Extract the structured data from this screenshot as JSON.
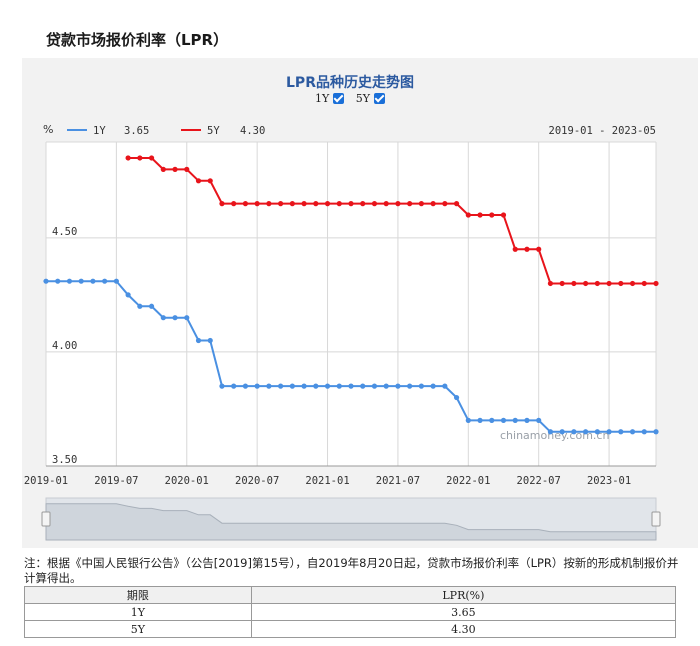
{
  "page": {
    "title": "贷款市场报价利率（LPR）"
  },
  "chart_header": {
    "title": "LPR品种历史走势图",
    "toggle_1y": "1Y",
    "toggle_5y": "5Y"
  },
  "legend": {
    "unit": "%",
    "items": [
      {
        "name": "1Y",
        "value": "3.65",
        "color": "#4a90e2"
      },
      {
        "name": "5Y",
        "value": "4.30",
        "color": "#e8141b"
      }
    ],
    "range": "2019-01 - 2023-05"
  },
  "watermark": "chinamoney.com.cn",
  "chart_data": {
    "type": "line",
    "x": [
      "2019-01",
      "2019-02",
      "2019-03",
      "2019-04",
      "2019-05",
      "2019-06",
      "2019-07",
      "2019-08",
      "2019-09",
      "2019-10",
      "2019-11",
      "2019-12",
      "2020-01",
      "2020-02",
      "2020-03",
      "2020-04",
      "2020-05",
      "2020-06",
      "2020-07",
      "2020-08",
      "2020-09",
      "2020-10",
      "2020-11",
      "2020-12",
      "2021-01",
      "2021-02",
      "2021-03",
      "2021-04",
      "2021-05",
      "2021-06",
      "2021-07",
      "2021-08",
      "2021-09",
      "2021-10",
      "2021-11",
      "2021-12",
      "2022-01",
      "2022-02",
      "2022-03",
      "2022-04",
      "2022-05",
      "2022-06",
      "2022-07",
      "2022-08",
      "2022-09",
      "2022-10",
      "2022-11",
      "2022-12",
      "2023-01",
      "2023-02",
      "2023-03",
      "2023-04",
      "2023-05"
    ],
    "series": [
      {
        "name": "1Y",
        "color": "#4a90e2",
        "values": [
          4.31,
          4.31,
          4.31,
          4.31,
          4.31,
          4.31,
          4.31,
          4.25,
          4.2,
          4.2,
          4.15,
          4.15,
          4.15,
          4.05,
          4.05,
          3.85,
          3.85,
          3.85,
          3.85,
          3.85,
          3.85,
          3.85,
          3.85,
          3.85,
          3.85,
          3.85,
          3.85,
          3.85,
          3.85,
          3.85,
          3.85,
          3.85,
          3.85,
          3.85,
          3.85,
          3.8,
          3.7,
          3.7,
          3.7,
          3.7,
          3.7,
          3.7,
          3.7,
          3.65,
          3.65,
          3.65,
          3.65,
          3.65,
          3.65,
          3.65,
          3.65,
          3.65,
          3.65
        ]
      },
      {
        "name": "5Y",
        "color": "#e8141b",
        "values": [
          null,
          null,
          null,
          null,
          null,
          null,
          null,
          4.85,
          4.85,
          4.85,
          4.8,
          4.8,
          4.8,
          4.75,
          4.75,
          4.65,
          4.65,
          4.65,
          4.65,
          4.65,
          4.65,
          4.65,
          4.65,
          4.65,
          4.65,
          4.65,
          4.65,
          4.65,
          4.65,
          4.65,
          4.65,
          4.65,
          4.65,
          4.65,
          4.65,
          4.65,
          4.6,
          4.6,
          4.6,
          4.6,
          4.45,
          4.45,
          4.45,
          4.3,
          4.3,
          4.3,
          4.3,
          4.3,
          4.3,
          4.3,
          4.3,
          4.3,
          4.3
        ]
      }
    ],
    "y_ticks": [
      "4.50",
      "4.00",
      "3.50"
    ],
    "x_ticks": [
      "2019-01",
      "2019-07",
      "2020-01",
      "2020-07",
      "2021-01",
      "2021-07",
      "2022-01",
      "2022-07",
      "2023-01"
    ],
    "ylim": [
      3.5,
      4.92
    ],
    "grid": true
  },
  "note": "注：根据《中国人民银行公告》（公告[2019]第15号），自2019年8月20日起，贷款市场报价利率（LPR）按新的形成机制报价并计算得出。",
  "table": {
    "headers": [
      "期限",
      "LPR(%)"
    ],
    "rows": [
      [
        "1Y",
        "3.65"
      ],
      [
        "5Y",
        "4.30"
      ]
    ]
  }
}
